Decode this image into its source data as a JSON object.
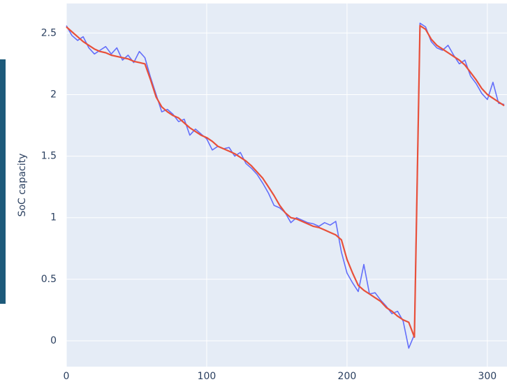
{
  "chart_data": {
    "type": "line",
    "y_label": "SoC capacity",
    "x": [
      0,
      4,
      8,
      12,
      16,
      20,
      24,
      28,
      32,
      36,
      40,
      44,
      48,
      52,
      56,
      60,
      64,
      68,
      72,
      76,
      80,
      84,
      88,
      92,
      96,
      100,
      104,
      108,
      112,
      116,
      120,
      124,
      128,
      132,
      136,
      140,
      144,
      148,
      152,
      156,
      160,
      164,
      168,
      172,
      176,
      180,
      184,
      188,
      192,
      196,
      200,
      204,
      208,
      212,
      216,
      220,
      224,
      228,
      232,
      236,
      240,
      244,
      248,
      252,
      256,
      260,
      264,
      268,
      272,
      276,
      280,
      284,
      288,
      292,
      296,
      300,
      304,
      308,
      312
    ],
    "series": [
      {
        "color": "#636efa",
        "values": [
          2.56,
          2.48,
          2.44,
          2.47,
          2.38,
          2.33,
          2.36,
          2.39,
          2.33,
          2.38,
          2.28,
          2.32,
          2.26,
          2.35,
          2.3,
          2.14,
          2.0,
          1.86,
          1.88,
          1.84,
          1.78,
          1.8,
          1.67,
          1.72,
          1.68,
          1.64,
          1.55,
          1.58,
          1.56,
          1.57,
          1.5,
          1.53,
          1.44,
          1.4,
          1.35,
          1.28,
          1.2,
          1.1,
          1.08,
          1.04,
          0.96,
          1.0,
          0.98,
          0.96,
          0.95,
          0.93,
          0.96,
          0.94,
          0.97,
          0.72,
          0.55,
          0.47,
          0.4,
          0.62,
          0.38,
          0.39,
          0.33,
          0.28,
          0.22,
          0.24,
          0.16,
          -0.06,
          0.05,
          2.58,
          2.55,
          2.43,
          2.38,
          2.36,
          2.4,
          2.32,
          2.25,
          2.28,
          2.15,
          2.09,
          2.01,
          1.96,
          2.1,
          1.93,
          1.92
        ]
      },
      {
        "color": "#e8503a",
        "values": [
          2.55,
          2.51,
          2.47,
          2.43,
          2.4,
          2.37,
          2.35,
          2.34,
          2.32,
          2.31,
          2.3,
          2.29,
          2.27,
          2.26,
          2.25,
          2.12,
          1.98,
          1.9,
          1.86,
          1.83,
          1.81,
          1.77,
          1.73,
          1.7,
          1.67,
          1.65,
          1.62,
          1.58,
          1.56,
          1.54,
          1.52,
          1.49,
          1.46,
          1.42,
          1.37,
          1.32,
          1.25,
          1.18,
          1.1,
          1.04,
          1.0,
          0.99,
          0.97,
          0.95,
          0.93,
          0.92,
          0.9,
          0.88,
          0.86,
          0.82,
          0.66,
          0.55,
          0.45,
          0.41,
          0.38,
          0.35,
          0.32,
          0.27,
          0.24,
          0.2,
          0.17,
          0.15,
          0.03,
          2.56,
          2.53,
          2.45,
          2.4,
          2.37,
          2.34,
          2.31,
          2.28,
          2.24,
          2.18,
          2.12,
          2.05,
          2.0,
          1.97,
          1.94,
          1.91
        ]
      }
    ],
    "xlim": [
      0,
      314
    ],
    "ylim": [
      -0.21,
      2.74
    ],
    "xticks": [
      0,
      100,
      200,
      300
    ],
    "yticks": [
      0,
      0.5,
      1,
      1.5,
      2,
      2.5
    ],
    "grid": true
  }
}
